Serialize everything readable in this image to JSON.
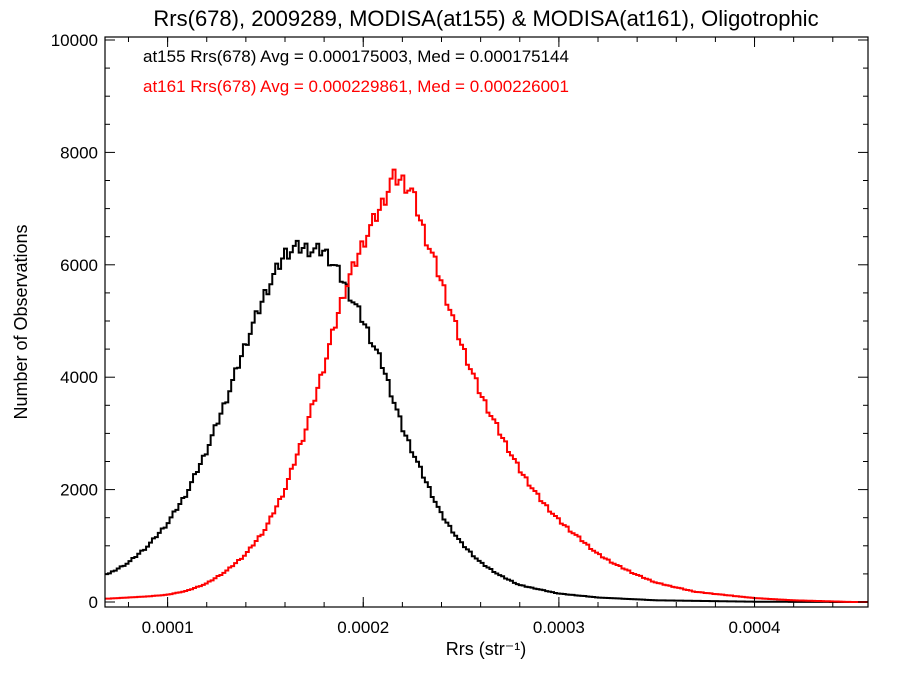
{
  "chart_data": {
    "type": "line",
    "style": "histogram-step",
    "title": "Rrs(678), 2009289, MODISA(at155) & MODISA(at161), Oligotrophic",
    "xlabel": "Rrs (str⁻¹)",
    "ylabel": "Number of Observations",
    "xlim": [
      6.8e-05,
      0.000458
    ],
    "ylim": [
      0,
      10000
    ],
    "x_ticks": [
      0.0001,
      0.0002,
      0.0003,
      0.0004
    ],
    "x_tick_labels": [
      "0.0001",
      "0.0002",
      "0.0003",
      "0.0004"
    ],
    "y_ticks": [
      0,
      2000,
      4000,
      6000,
      8000,
      10000
    ],
    "y_tick_labels": [
      "0",
      "2000",
      "4000",
      "6000",
      "8000",
      "10000"
    ],
    "grid": false,
    "legend_position": "top-left",
    "series": [
      {
        "name": "at155",
        "legend": "at155 Rrs(678) Avg = 0.000175003, Med = 0.000175144",
        "color": "#000000",
        "x": [
          7e-05,
          8e-05,
          9e-05,
          0.0001,
          0.00011,
          0.00012,
          0.00013,
          0.00014,
          0.00015,
          0.00016,
          0.000165,
          0.00017,
          0.000175,
          0.00018,
          0.000185,
          0.00019,
          0.0002,
          0.00021,
          0.00022,
          0.00023,
          0.00024,
          0.00025,
          0.00026,
          0.00027,
          0.00028,
          0.0003,
          0.00032,
          0.00035,
          0.0004,
          0.00045
        ],
        "y": [
          500,
          700,
          1000,
          1400,
          1950,
          2700,
          3600,
          4600,
          5500,
          6200,
          6300,
          6300,
          6250,
          6250,
          6000,
          5700,
          5000,
          4200,
          3100,
          2300,
          1550,
          1050,
          700,
          470,
          300,
          150,
          80,
          30,
          5,
          0
        ]
      },
      {
        "name": "at161",
        "legend": "at161 Rrs(678) Avg = 0.000229861, Med = 0.000226001",
        "color": "#ff0000",
        "x": [
          7e-05,
          9e-05,
          0.0001,
          0.00011,
          0.00012,
          0.00013,
          0.00014,
          0.00015,
          0.00016,
          0.00017,
          0.00018,
          0.00019,
          0.0002,
          0.00021,
          0.000215,
          0.00022,
          0.000225,
          0.00023,
          0.00024,
          0.00025,
          0.00026,
          0.00027,
          0.00028,
          0.00029,
          0.0003,
          0.00031,
          0.00032,
          0.00033,
          0.00034,
          0.00035,
          0.00037,
          0.0004,
          0.00042,
          0.00045
        ],
        "y": [
          60,
          100,
          130,
          200,
          330,
          550,
          850,
          1300,
          2000,
          3000,
          4200,
          5500,
          6400,
          7100,
          7550,
          7500,
          7300,
          6700,
          5700,
          4600,
          3700,
          3000,
          2350,
          1850,
          1450,
          1150,
          850,
          650,
          480,
          340,
          180,
          70,
          30,
          0
        ]
      }
    ]
  }
}
